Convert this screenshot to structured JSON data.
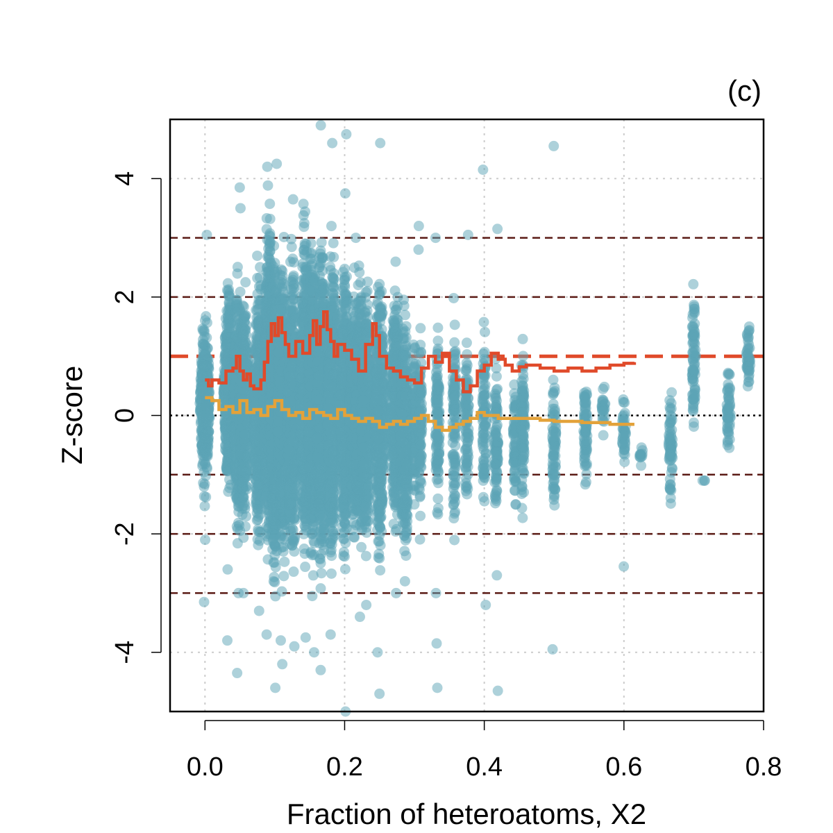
{
  "chart_data": {
    "type": "scatter",
    "panel_label": "(c)",
    "xlabel": "Fraction of heteroatoms, X2",
    "ylabel": "Z-score",
    "xlim": [
      -0.05,
      0.8
    ],
    "ylim": [
      -5,
      5
    ],
    "x_ticks": [
      0.0,
      0.2,
      0.4,
      0.6,
      0.8
    ],
    "x_tick_labels": [
      "0.0",
      "0.2",
      "0.4",
      "0.6",
      "0.8"
    ],
    "y_ticks": [
      -4,
      -2,
      0,
      2,
      4
    ],
    "y_tick_labels": [
      "-4",
      "-2",
      "0",
      "2",
      "4"
    ],
    "grid": true,
    "colors": {
      "points": "#5ba3b5",
      "rms_line": "#e04a2a",
      "mean_line": "#e3a23a",
      "ref_dashed": "#5a1a14",
      "zero_line": "#000000"
    },
    "reference_lines": {
      "dashed_dark": [
        -3,
        -2,
        -1,
        2,
        3
      ],
      "dashed_red": 1,
      "dotted_black": 0
    },
    "columns": [
      {
        "x": 0.0,
        "ymin": -1.7,
        "ymax": 2.1,
        "outliers": [
          3.05,
          -2.1,
          -3.15
        ]
      },
      {
        "x": 0.034,
        "ymin": -2.0,
        "ymax": 2.8,
        "outliers": [
          -2.6,
          -3.8
        ]
      },
      {
        "x": 0.048,
        "ymin": -2.5,
        "ymax": 2.7,
        "outliers": [
          3.5,
          3.85,
          -3.0,
          -4.35
        ]
      },
      {
        "x": 0.056,
        "ymin": -2.3,
        "ymax": 2.6,
        "outliers": [
          -3.0
        ]
      },
      {
        "x": 0.077,
        "ymin": -2.8,
        "ymax": 3.0,
        "outliers": [
          -3.3
        ]
      },
      {
        "x": 0.091,
        "ymin": -3.0,
        "ymax": 4.1,
        "outliers": [
          4.2,
          -3.7
        ]
      },
      {
        "x": 0.1,
        "ymin": -3.5,
        "ymax": 3.6,
        "outliers": [
          4.25,
          -4.6
        ]
      },
      {
        "x": 0.111,
        "ymin": -3.3,
        "ymax": 3.5,
        "outliers": [
          -4.2,
          -3.8
        ]
      },
      {
        "x": 0.125,
        "ymin": -3.2,
        "ymax": 3.3,
        "outliers": [
          3.65,
          -3.9
        ]
      },
      {
        "x": 0.143,
        "ymin": -3.0,
        "ymax": 3.9,
        "outliers": [
          -3.75
        ]
      },
      {
        "x": 0.154,
        "ymin": -3.2,
        "ymax": 3.6,
        "outliers": [
          -4.0
        ]
      },
      {
        "x": 0.167,
        "ymin": -3.5,
        "ymax": 3.9,
        "outliers": [
          4.9,
          -4.3
        ]
      },
      {
        "x": 0.182,
        "ymin": -3.2,
        "ymax": 3.4,
        "outliers": [
          4.6,
          -3.7
        ]
      },
      {
        "x": 0.2,
        "ymin": -3.0,
        "ymax": 3.4,
        "outliers": [
          3.75,
          4.75,
          -5.0
        ]
      },
      {
        "x": 0.214,
        "ymin": -2.6,
        "ymax": 2.6,
        "outliers": [
          3.0
        ]
      },
      {
        "x": 0.222,
        "ymin": -2.7,
        "ymax": 2.8,
        "outliers": [
          -3.4
        ]
      },
      {
        "x": 0.231,
        "ymin": -2.5,
        "ymax": 2.5,
        "outliers": [
          -3.2
        ]
      },
      {
        "x": 0.25,
        "ymin": -3.0,
        "ymax": 3.1,
        "outliers": [
          4.6,
          -4.0,
          -4.7
        ]
      },
      {
        "x": 0.273,
        "ymin": -2.5,
        "ymax": 2.7,
        "outliers": [
          -3.0
        ]
      },
      {
        "x": 0.286,
        "ymin": -2.8,
        "ymax": 2.2,
        "outliers": [
          -2.8
        ]
      },
      {
        "x": 0.3,
        "ymin": -2.0,
        "ymax": 1.9,
        "outliers": []
      },
      {
        "x": 0.308,
        "ymin": -2.2,
        "ymax": 2.0,
        "outliers": [
          3.2,
          2.8
        ]
      },
      {
        "x": 0.333,
        "ymin": -2.4,
        "ymax": 2.1,
        "outliers": [
          3.0,
          -3.0,
          -4.6,
          -3.85
        ]
      },
      {
        "x": 0.357,
        "ymin": -2.4,
        "ymax": 2.2,
        "outliers": []
      },
      {
        "x": 0.375,
        "ymin": -2.0,
        "ymax": 1.8,
        "outliers": [
          3.05
        ]
      },
      {
        "x": 0.4,
        "ymin": -2.0,
        "ymax": 1.9,
        "outliers": [
          4.15,
          -3.2
        ]
      },
      {
        "x": 0.417,
        "ymin": -2.3,
        "ymax": 1.5,
        "outliers": [
          3.15,
          -2.7,
          -4.65
        ]
      },
      {
        "x": 0.444,
        "ymin": -2.0,
        "ymax": 1.1,
        "outliers": []
      },
      {
        "x": 0.455,
        "ymin": -2.3,
        "ymax": 1.9,
        "outliers": []
      },
      {
        "x": 0.5,
        "ymin": -2.0,
        "ymax": 1.1,
        "outliers": [
          4.55,
          -3.95
        ]
      },
      {
        "x": 0.545,
        "ymin": -1.7,
        "ymax": 1.3,
        "outliers": []
      },
      {
        "x": 0.571,
        "ymin": -0.4,
        "ymax": 0.6,
        "outliers": []
      },
      {
        "x": 0.6,
        "ymin": -1.1,
        "ymax": 0.5,
        "outliers": [
          -2.55
        ]
      },
      {
        "x": 0.625,
        "ymin": -0.9,
        "ymax": -0.4,
        "outliers": []
      },
      {
        "x": 0.667,
        "ymin": -1.8,
        "ymax": 0.85,
        "outliers": []
      },
      {
        "x": 0.7,
        "ymin": -0.6,
        "ymax": 2.6,
        "outliers": []
      },
      {
        "x": 0.714,
        "ymin": -1.1,
        "ymax": -1.1,
        "outliers": []
      },
      {
        "x": 0.75,
        "ymin": -0.95,
        "ymax": 1.1,
        "outliers": [
          0.7,
          -0.05
        ]
      },
      {
        "x": 0.778,
        "ymin": -0.05,
        "ymax": 1.85,
        "outliers": []
      }
    ],
    "series": [
      {
        "x": [
          0.0,
          0.005,
          0.01,
          0.02,
          0.03,
          0.04,
          0.045,
          0.05,
          0.055,
          0.06,
          0.065,
          0.07,
          0.08,
          0.085,
          0.09,
          0.095,
          0.1,
          0.105,
          0.11,
          0.115,
          0.12,
          0.13,
          0.14,
          0.15,
          0.155,
          0.16,
          0.165,
          0.17,
          0.175,
          0.18,
          0.185,
          0.19,
          0.2,
          0.21,
          0.22,
          0.23,
          0.24,
          0.245,
          0.25,
          0.26,
          0.27,
          0.28,
          0.29,
          0.3,
          0.31,
          0.32,
          0.33,
          0.34,
          0.35,
          0.36,
          0.37,
          0.38,
          0.39,
          0.4,
          0.41,
          0.42,
          0.43,
          0.44,
          0.45,
          0.46,
          0.48,
          0.5,
          0.52,
          0.54,
          0.56,
          0.58,
          0.6,
          0.615
        ],
        "y": [
          0.6,
          0.5,
          0.6,
          0.55,
          0.75,
          0.8,
          1.0,
          0.75,
          0.6,
          0.7,
          0.5,
          0.45,
          0.6,
          0.9,
          1.25,
          1.55,
          1.35,
          1.65,
          1.4,
          1.2,
          1.0,
          1.25,
          1.05,
          1.35,
          1.6,
          1.2,
          1.5,
          1.75,
          1.45,
          1.25,
          1.0,
          1.2,
          1.1,
          0.95,
          0.75,
          1.2,
          1.55,
          1.35,
          1.0,
          0.8,
          0.75,
          0.65,
          0.6,
          0.55,
          0.8,
          1.0,
          0.9,
          1.05,
          0.75,
          0.6,
          0.4,
          0.5,
          0.75,
          0.85,
          1.05,
          0.95,
          0.85,
          0.75,
          0.82,
          0.85,
          0.8,
          0.75,
          0.8,
          0.75,
          0.8,
          0.85,
          0.88,
          0.9
        ]
      },
      {
        "x": [
          0.0,
          0.01,
          0.02,
          0.03,
          0.04,
          0.05,
          0.06,
          0.07,
          0.08,
          0.09,
          0.1,
          0.11,
          0.12,
          0.13,
          0.14,
          0.15,
          0.16,
          0.17,
          0.18,
          0.19,
          0.2,
          0.21,
          0.22,
          0.23,
          0.24,
          0.25,
          0.26,
          0.27,
          0.28,
          0.29,
          0.3,
          0.31,
          0.32,
          0.33,
          0.34,
          0.35,
          0.36,
          0.37,
          0.38,
          0.39,
          0.4,
          0.42,
          0.44,
          0.46,
          0.48,
          0.5,
          0.52,
          0.54,
          0.56,
          0.58,
          0.6,
          0.615
        ],
        "y": [
          0.3,
          0.25,
          0.1,
          0.15,
          0.05,
          0.25,
          0.05,
          0.1,
          0.0,
          0.15,
          0.25,
          0.1,
          0.0,
          0.05,
          -0.05,
          0.1,
          0.05,
          0.0,
          -0.05,
          0.1,
          0.0,
          -0.05,
          -0.1,
          -0.05,
          -0.1,
          -0.2,
          -0.15,
          -0.1,
          -0.15,
          -0.1,
          -0.05,
          0.0,
          -0.1,
          -0.2,
          -0.25,
          -0.2,
          -0.15,
          -0.1,
          -0.05,
          0.05,
          0.0,
          -0.05,
          -0.05,
          -0.05,
          -0.08,
          -0.1,
          -0.1,
          -0.12,
          -0.12,
          -0.15,
          -0.15,
          -0.15
        ]
      }
    ]
  }
}
